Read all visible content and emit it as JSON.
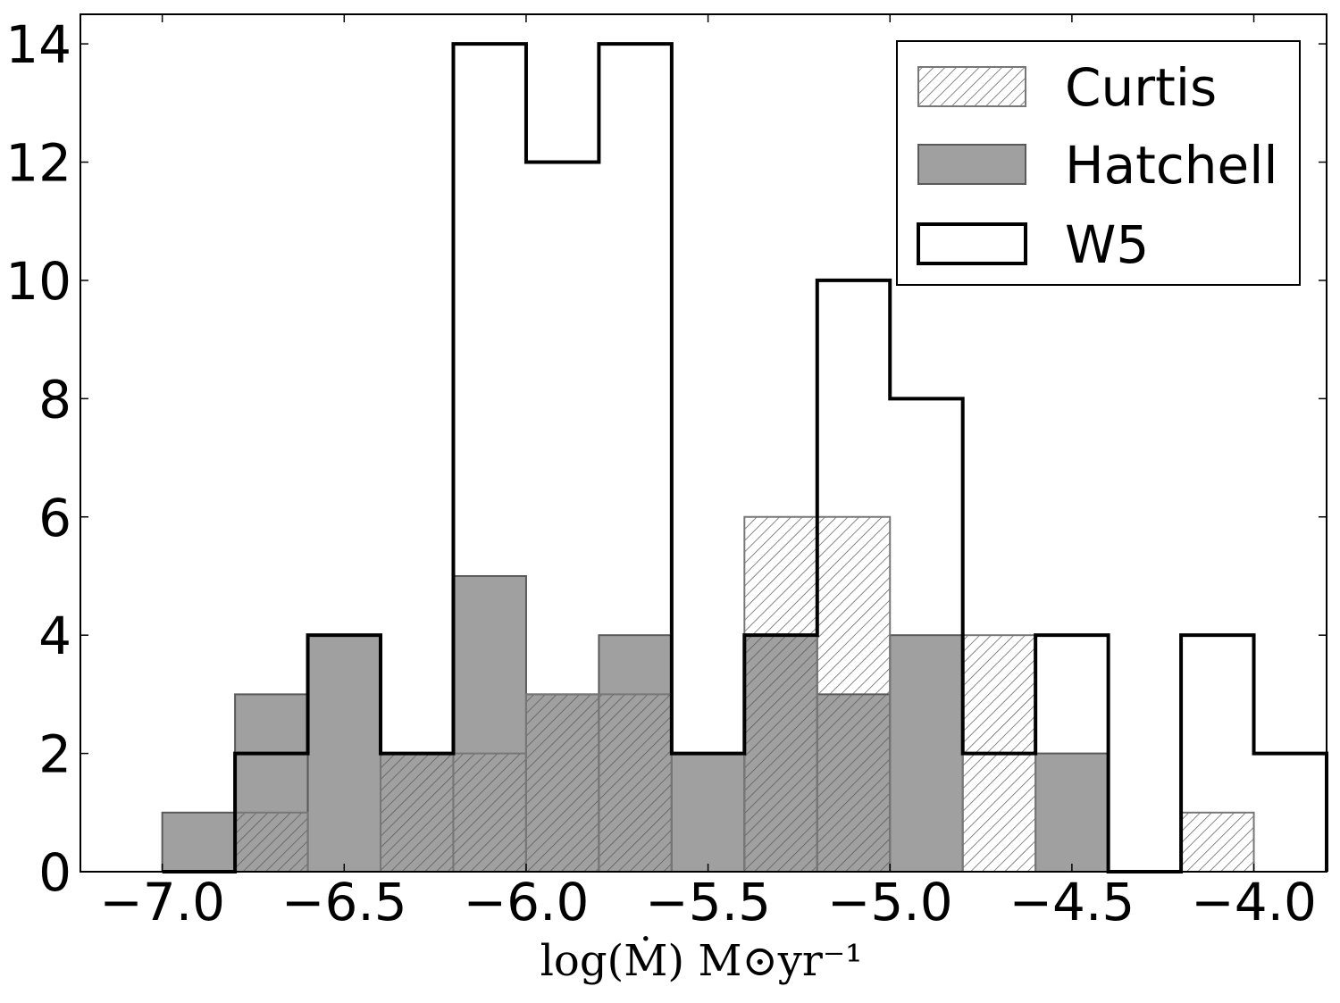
{
  "chart_data": {
    "type": "bar",
    "subtype": "step-histogram",
    "title": "",
    "xlabel": "log(Ṁ) M⊙yr⁻¹",
    "ylabel": "",
    "xlim": [
      -7.225,
      -3.8
    ],
    "ylim": [
      0,
      14.5
    ],
    "bin_edges": [
      -7.0,
      -6.8,
      -6.6,
      -6.4,
      -6.2,
      -6.0,
      -5.8,
      -5.6,
      -5.4,
      -5.2,
      -5.0,
      -4.8,
      -4.6,
      -4.4,
      -4.2,
      -4.0,
      -3.8
    ],
    "x_ticks": [
      {
        "value": -7.0,
        "label": "−7.0"
      },
      {
        "value": -6.5,
        "label": "−6.5"
      },
      {
        "value": -6.0,
        "label": "−6.0"
      },
      {
        "value": -5.5,
        "label": "−5.5"
      },
      {
        "value": -5.0,
        "label": "−5.0"
      },
      {
        "value": -4.5,
        "label": "−4.5"
      },
      {
        "value": -4.0,
        "label": "−4.0"
      }
    ],
    "y_ticks": [
      {
        "value": 0,
        "label": "0"
      },
      {
        "value": 2,
        "label": "2"
      },
      {
        "value": 4,
        "label": "4"
      },
      {
        "value": 6,
        "label": "6"
      },
      {
        "value": 8,
        "label": "8"
      },
      {
        "value": 10,
        "label": "10"
      },
      {
        "value": 12,
        "label": "12"
      },
      {
        "value": 14,
        "label": "14"
      }
    ],
    "series": [
      {
        "name": "Curtis",
        "style": "hatched",
        "values": [
          0,
          1,
          0,
          2,
          2,
          3,
          3,
          0,
          6,
          6,
          0,
          4,
          0,
          0,
          1,
          0
        ]
      },
      {
        "name": "Hatchell",
        "style": "filled",
        "values": [
          1,
          3,
          4,
          2,
          5,
          3,
          4,
          2,
          4,
          3,
          4,
          0,
          2,
          0,
          0,
          0
        ]
      },
      {
        "name": "W5",
        "style": "step",
        "values": [
          0,
          2,
          4,
          2,
          14,
          12,
          14,
          2,
          4,
          10,
          8,
          2,
          4,
          0,
          4,
          2
        ]
      }
    ],
    "legend": {
      "position": "top-right",
      "entries": [
        "Curtis",
        "Hatchell",
        "W5"
      ]
    },
    "grid": false,
    "colors": {
      "hatchell_fill": "#a0a0a0",
      "hatchell_edge": "#5a5a5a",
      "curtis_hatch": "#555555",
      "w5_line": "#000000"
    }
  }
}
